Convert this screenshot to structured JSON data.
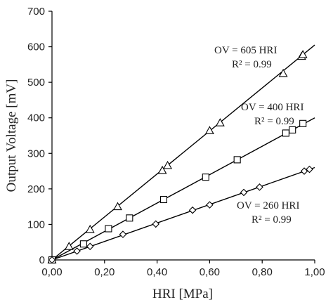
{
  "chart_data": {
    "type": "scatter",
    "title": "",
    "xlabel": "HRI [MPa]",
    "ylabel": "Output Voltage [mV]",
    "xlim": [
      0,
      1.0
    ],
    "ylim": [
      0,
      700
    ],
    "x_ticks": [
      0,
      0.2,
      0.4,
      0.6,
      0.8,
      1.0
    ],
    "x_tick_labels": [
      "0,00",
      "0,20",
      "0,40",
      "0,60",
      "0,80",
      "1,00"
    ],
    "y_ticks": [
      0,
      100,
      200,
      300,
      400,
      500,
      600,
      700
    ],
    "y_tick_labels": [
      "0",
      "100",
      "200",
      "300",
      "400",
      "500",
      "600",
      "700"
    ],
    "grid": false,
    "legend": "none",
    "series": [
      {
        "marker": "triangle",
        "fit_slope": 605,
        "x": [
          0,
          0.065,
          0.145,
          0.25,
          0.42,
          0.44,
          0.6,
          0.64,
          0.88,
          0.95,
          0.955
        ],
        "y": [
          0,
          38,
          86,
          150,
          252,
          266,
          364,
          386,
          525,
          573,
          578
        ]
      },
      {
        "marker": "square",
        "fit_slope": 400,
        "x": [
          0,
          0.12,
          0.215,
          0.295,
          0.425,
          0.585,
          0.705,
          0.89,
          0.915,
          0.955
        ],
        "y": [
          0,
          45,
          88,
          118,
          170,
          233,
          282,
          357,
          366,
          384
        ]
      },
      {
        "marker": "diamond",
        "fit_slope": 260,
        "x": [
          0,
          0.095,
          0.145,
          0.27,
          0.395,
          0.535,
          0.6,
          0.73,
          0.79,
          0.96,
          0.98
        ],
        "y": [
          0,
          25,
          38,
          72,
          101,
          140,
          155,
          190,
          205,
          250,
          255
        ]
      }
    ],
    "annotations": [
      {
        "line1": "OV = 605 HRI",
        "line2": "R² = 0.99"
      },
      {
        "line1": "OV = 400 HRI",
        "line2": "R² = 0.99"
      },
      {
        "line1": "OV = 260 HRI",
        "line2": "R² = 0.99"
      }
    ]
  }
}
